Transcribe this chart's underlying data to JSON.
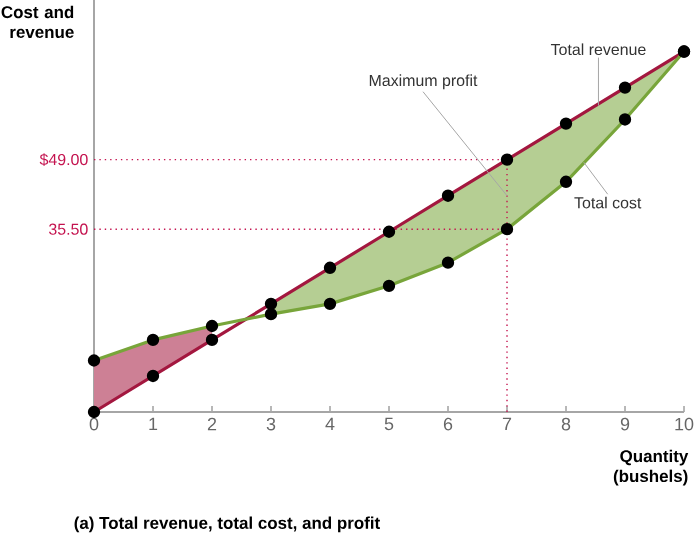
{
  "chart_data": {
    "type": "line",
    "title": "(a) Total revenue, total cost, and profit",
    "xlabel": "Quantity (bushels)",
    "ylabel": "Cost and revenue",
    "x": [
      0,
      1,
      2,
      3,
      4,
      5,
      6,
      7,
      8,
      9,
      10
    ],
    "series": [
      {
        "name": "Total revenue",
        "color": "#a3173f",
        "values": [
          0,
          7,
          14,
          21,
          28,
          35,
          42,
          49,
          56,
          63,
          70
        ],
        "lower": [
          0,
          7,
          14,
          null,
          null,
          null,
          null,
          null,
          null,
          null,
          null
        ],
        "upper": [
          10,
          14,
          16.7,
          null,
          null,
          null,
          null,
          null,
          null,
          null,
          null
        ]
      },
      {
        "name": "Total cost",
        "color": "#78a53a",
        "values": [
          10,
          14,
          16.7,
          19,
          21,
          24.5,
          29,
          35.5,
          44.7,
          56.8,
          70
        ],
        "lower": [
          null,
          null,
          null,
          19,
          21,
          24.5,
          29,
          35.5,
          44.7,
          56.8,
          70
        ],
        "upper": [
          null,
          null,
          null,
          21,
          28,
          35,
          42,
          49,
          56,
          63,
          70
        ]
      }
    ],
    "xlim": [
      0,
      10
    ],
    "ylim": [
      0,
      80
    ],
    "xticks": [
      0,
      1,
      2,
      3,
      4,
      5,
      6,
      7,
      8,
      9,
      10
    ],
    "yticks": [
      {
        "value": 35.5,
        "label": "35.50"
      },
      {
        "value": 49,
        "label": "$49.00"
      }
    ],
    "ref_lines": [
      {
        "axis": "y",
        "value": 49,
        "color": "#c4134f",
        "line_style": "dotted"
      },
      {
        "axis": "y",
        "value": 35.5,
        "color": "#c4134f",
        "line_style": "dotted"
      },
      {
        "axis": "x",
        "value": 7,
        "color": "#c4134f",
        "line_style": "dotted"
      }
    ],
    "annotations": [
      {
        "text": "Maximum profit",
        "x": 7,
        "y": 42
      }
    ],
    "marker": "circle",
    "grid": false,
    "legend": false
  }
}
